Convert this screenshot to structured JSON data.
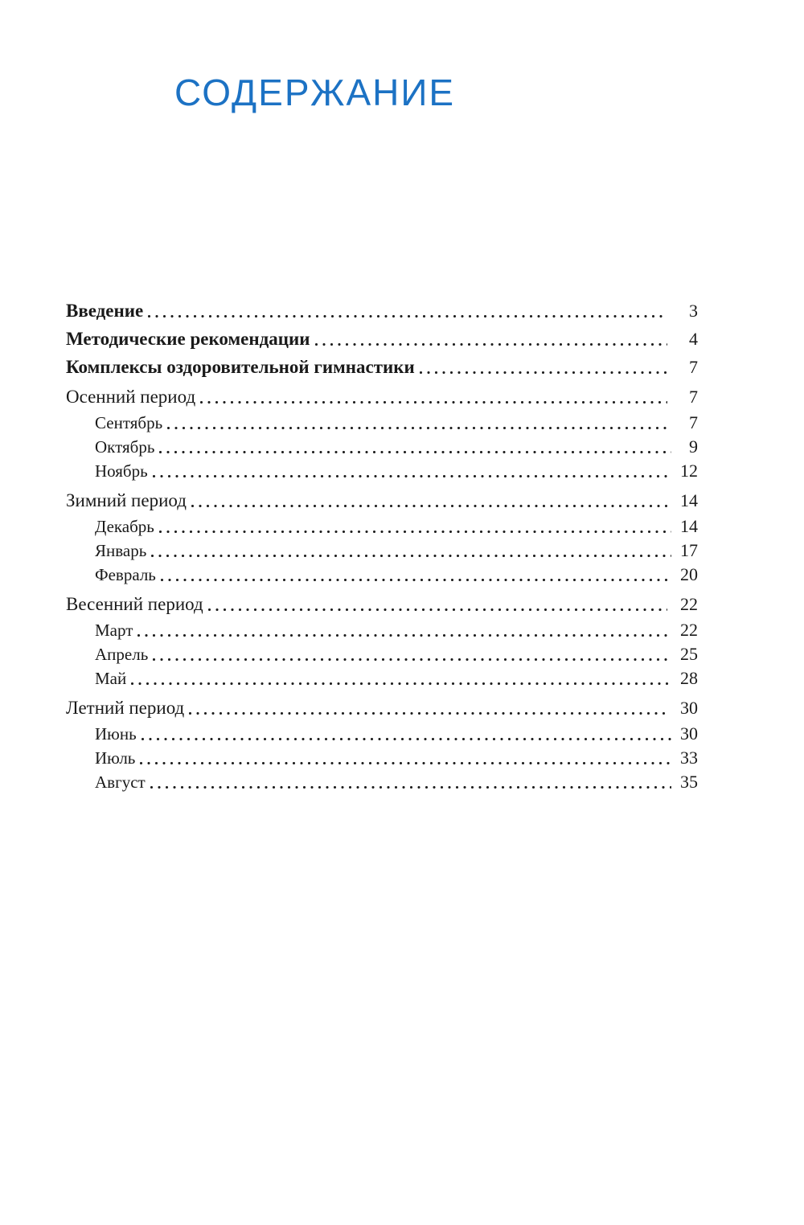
{
  "page": {
    "title": "СОДЕРЖАНИЕ",
    "title_color": "#1c72c4"
  },
  "toc": {
    "entries": [
      {
        "label": "Введение",
        "page": "3",
        "style": "bold"
      },
      {
        "label": "Методические рекомендации",
        "page": "4",
        "style": "bold"
      },
      {
        "label": "Комплексы оздоровительной гимнастики",
        "page": "7",
        "style": "bold"
      },
      {
        "label": "Осенний период",
        "page": "7",
        "style": "section"
      },
      {
        "label": "Сентябрь",
        "page": "7",
        "style": "sub"
      },
      {
        "label": "Октябрь",
        "page": "9",
        "style": "sub"
      },
      {
        "label": "Ноябрь",
        "page": "12",
        "style": "sub"
      },
      {
        "label": "Зимний период",
        "page": "14",
        "style": "section"
      },
      {
        "label": "Декабрь",
        "page": "14",
        "style": "sub"
      },
      {
        "label": "Январь",
        "page": "17",
        "style": "sub"
      },
      {
        "label": "Февраль",
        "page": "20",
        "style": "sub"
      },
      {
        "label": "Весенний период",
        "page": "22",
        "style": "section"
      },
      {
        "label": "Март",
        "page": "22",
        "style": "sub"
      },
      {
        "label": "Апрель",
        "page": "25",
        "style": "sub"
      },
      {
        "label": "Май",
        "page": "28",
        "style": "sub"
      },
      {
        "label": "Летний период",
        "page": "30",
        "style": "section"
      },
      {
        "label": "Июнь",
        "page": "30",
        "style": "sub"
      },
      {
        "label": "Июль",
        "page": "33",
        "style": "sub"
      },
      {
        "label": "Август",
        "page": "35",
        "style": "sub"
      }
    ]
  }
}
